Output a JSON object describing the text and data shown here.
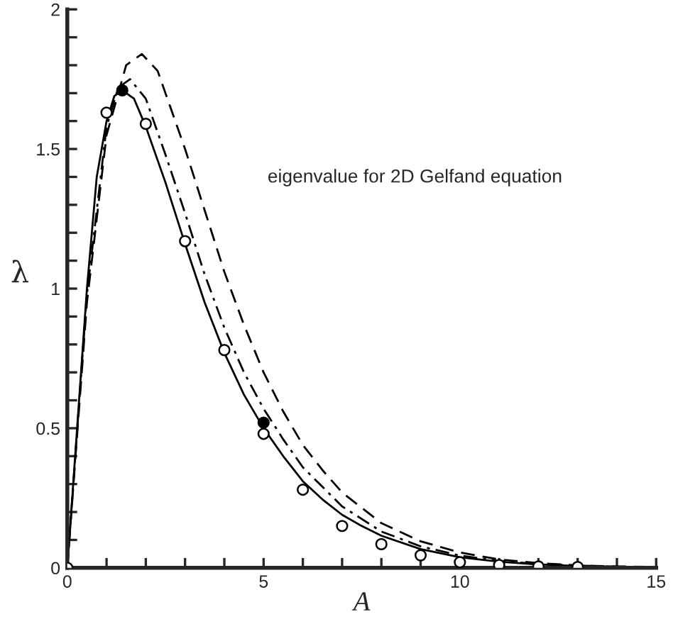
{
  "chart_data": {
    "type": "line",
    "xlabel": "A",
    "ylabel": "λ",
    "annotations": [
      "eigenvalue for 2D Gelfand equation"
    ],
    "xlim": [
      0,
      15
    ],
    "ylim": [
      0,
      2
    ],
    "xticks": [
      0,
      {
        "value": 1,
        "label": null
      },
      {
        "value": 2,
        "label": null
      },
      {
        "value": 3,
        "label": null
      },
      {
        "value": 4,
        "label": null
      },
      5,
      {
        "value": 6,
        "label": null
      },
      {
        "value": 7,
        "label": null
      },
      {
        "value": 8,
        "label": null
      },
      {
        "value": 9,
        "label": null
      },
      10,
      {
        "value": 11,
        "label": null
      },
      {
        "value": 12,
        "label": null
      },
      {
        "value": 13,
        "label": null
      },
      {
        "value": 14,
        "label": null
      },
      15
    ],
    "yticks": [
      0,
      {
        "value": 0.1,
        "label": null
      },
      {
        "value": 0.2,
        "label": null
      },
      {
        "value": 0.3,
        "label": null
      },
      {
        "value": 0.4,
        "label": null
      },
      0.5,
      {
        "value": 0.6,
        "label": null
      },
      {
        "value": 0.7,
        "label": null
      },
      {
        "value": 0.8,
        "label": null
      },
      {
        "value": 0.9,
        "label": null
      },
      1,
      {
        "value": 1.1,
        "label": null
      },
      {
        "value": 1.2,
        "label": null
      },
      {
        "value": 1.3,
        "label": null
      },
      {
        "value": 1.4,
        "label": null
      },
      1.5,
      {
        "value": 1.6,
        "label": null
      },
      {
        "value": 1.7,
        "label": null
      },
      {
        "value": 1.8,
        "label": null
      },
      {
        "value": 1.9,
        "label": null
      },
      2
    ],
    "grid": false,
    "legend": false,
    "series": [
      {
        "line_style": "solid",
        "color": "#000000",
        "x": [
          0,
          0.25,
          0.5,
          0.75,
          1,
          1.2,
          1.4,
          1.7,
          2,
          2.5,
          3,
          3.5,
          4,
          4.5,
          5,
          5.5,
          6,
          6.5,
          7,
          7.5,
          8,
          9,
          10,
          11,
          12,
          13,
          14,
          15
        ],
        "values": [
          0,
          0.5,
          1.0,
          1.4,
          1.6,
          1.69,
          1.71,
          1.68,
          1.58,
          1.38,
          1.16,
          0.95,
          0.77,
          0.62,
          0.5,
          0.4,
          0.31,
          0.245,
          0.19,
          0.15,
          0.115,
          0.067,
          0.038,
          0.022,
          0.012,
          0.007,
          0.004,
          0.002
        ]
      },
      {
        "line_style": "dashdot",
        "color": "#000000",
        "x": [
          0,
          0.5,
          1,
          1.3,
          1.6,
          2,
          2.5,
          3,
          3.5,
          4,
          4.5,
          5,
          5.5,
          6,
          6.5,
          7,
          8,
          9,
          10,
          11,
          12,
          13,
          14,
          15
        ],
        "values": [
          0,
          0.98,
          1.58,
          1.72,
          1.75,
          1.68,
          1.48,
          1.27,
          1.05,
          0.86,
          0.7,
          0.57,
          0.46,
          0.36,
          0.29,
          0.22,
          0.13,
          0.077,
          0.044,
          0.025,
          0.014,
          0.008,
          0.004,
          0.002
        ]
      },
      {
        "line_style": "dashed",
        "color": "#000000",
        "x": [
          0,
          0.5,
          1,
          1.5,
          1.9,
          2.3,
          3,
          3.5,
          4,
          4.5,
          5,
          5.5,
          6,
          6.5,
          7,
          8,
          9,
          10,
          11,
          12,
          13,
          14,
          15
        ],
        "values": [
          0,
          0.95,
          1.55,
          1.8,
          1.84,
          1.78,
          1.5,
          1.28,
          1.06,
          0.87,
          0.7,
          0.56,
          0.44,
          0.35,
          0.27,
          0.16,
          0.095,
          0.055,
          0.03,
          0.017,
          0.009,
          0.005,
          0.003
        ]
      },
      {
        "type": "scatter",
        "marker": "circle",
        "color": "#ffffff",
        "x": [
          0,
          1,
          2,
          3,
          4,
          5,
          6,
          7,
          8,
          9,
          10,
          11,
          12,
          13
        ],
        "values": [
          0,
          1.63,
          1.59,
          1.17,
          0.78,
          0.48,
          0.28,
          0.15,
          0.085,
          0.045,
          0.02,
          0.01,
          0.005,
          0.003
        ]
      },
      {
        "type": "scatter",
        "marker": "circle",
        "color": "#000000",
        "x": [
          1.4,
          5
        ],
        "values": [
          1.71,
          0.52
        ]
      }
    ]
  }
}
